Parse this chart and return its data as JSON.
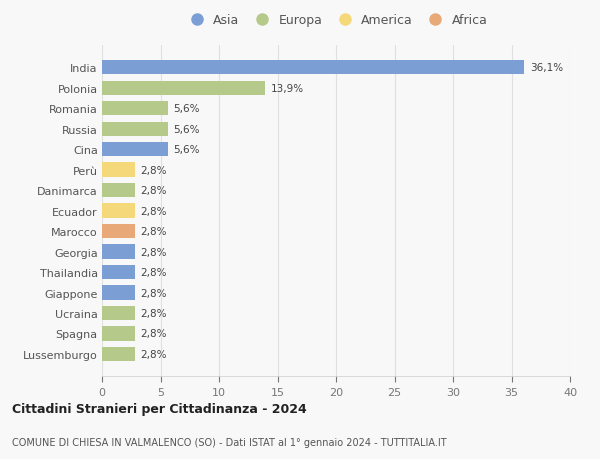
{
  "countries": [
    "India",
    "Polonia",
    "Romania",
    "Russia",
    "Cina",
    "Perù",
    "Danimarca",
    "Ecuador",
    "Marocco",
    "Georgia",
    "Thailandia",
    "Giappone",
    "Ucraina",
    "Spagna",
    "Lussemburgo"
  ],
  "values": [
    36.1,
    13.9,
    5.6,
    5.6,
    5.6,
    2.8,
    2.8,
    2.8,
    2.8,
    2.8,
    2.8,
    2.8,
    2.8,
    2.8,
    2.8
  ],
  "labels": [
    "36,1%",
    "13,9%",
    "5,6%",
    "5,6%",
    "5,6%",
    "2,8%",
    "2,8%",
    "2,8%",
    "2,8%",
    "2,8%",
    "2,8%",
    "2,8%",
    "2,8%",
    "2,8%",
    "2,8%"
  ],
  "continents": [
    "Asia",
    "Europa",
    "Europa",
    "Europa",
    "Asia",
    "America",
    "Europa",
    "America",
    "Africa",
    "Asia",
    "Asia",
    "Asia",
    "Europa",
    "Europa",
    "Europa"
  ],
  "colors": {
    "Asia": "#7b9fd4",
    "Europa": "#b5c98a",
    "America": "#f5d87a",
    "Africa": "#e8a878"
  },
  "legend_order": [
    "Asia",
    "Europa",
    "America",
    "Africa"
  ],
  "title1": "Cittadini Stranieri per Cittadinanza - 2024",
  "title2": "COMUNE DI CHIESA IN VALMALENCO (SO) - Dati ISTAT al 1° gennaio 2024 - TUTTITALIA.IT",
  "xlim": [
    0,
    40
  ],
  "xticks": [
    0,
    5,
    10,
    15,
    20,
    25,
    30,
    35,
    40
  ],
  "bg_color": "#f8f8f8",
  "grid_color": "#e0e0e0"
}
